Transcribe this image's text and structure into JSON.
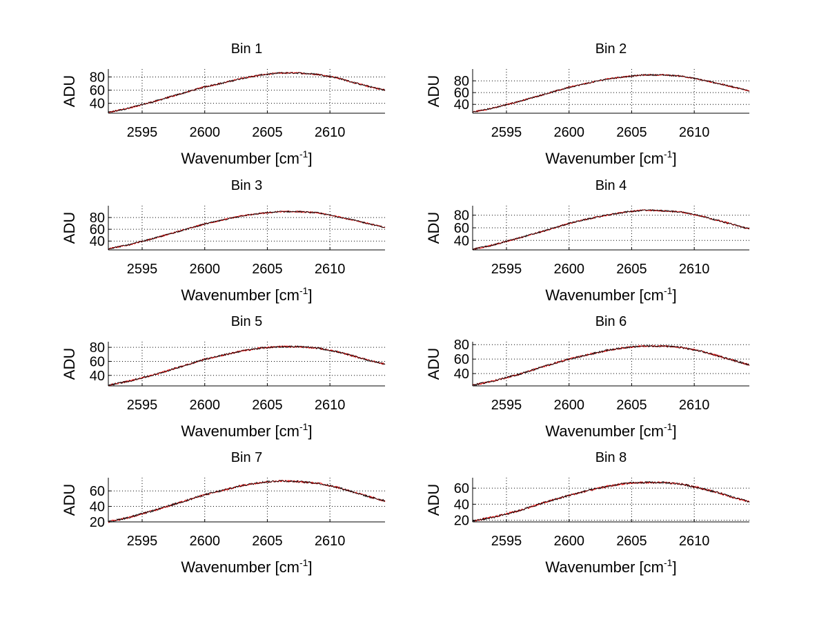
{
  "figure": {
    "background": "#ffffff",
    "line_colors": [
      "#ff0000",
      "#000000"
    ]
  },
  "chart_data": [
    {
      "type": "line",
      "title": "Bin 1",
      "xlabel": "Wavenumber [cm",
      "xlabel_sup": "-1",
      "xlabel_end": "]",
      "ylabel": "ADU",
      "xlim": [
        2592.3,
        2614.4
      ],
      "ylim": [
        25,
        92
      ],
      "xticks": [
        2595,
        2600,
        2605,
        2610
      ],
      "yticks": [
        40,
        60,
        80
      ],
      "grid": true,
      "series": [
        {
          "name": "red",
          "x": [
            2592.3,
            2594.0,
            2596.0,
            2598.0,
            2600.0,
            2601.5,
            2603.0,
            2604.5,
            2606.0,
            2607.5,
            2609.0,
            2610.5,
            2612.0,
            2613.0,
            2614.4
          ],
          "y": [
            26,
            33,
            43,
            54,
            65,
            71,
            78,
            83,
            86,
            86,
            84,
            79,
            71,
            66,
            60
          ]
        }
      ]
    },
    {
      "type": "line",
      "title": "Bin 2",
      "xlabel": "Wavenumber [cm",
      "xlabel_sup": "-1",
      "xlabel_end": "]",
      "ylabel": "ADU",
      "xlim": [
        2592.3,
        2614.4
      ],
      "ylim": [
        25,
        100
      ],
      "xticks": [
        2595,
        2600,
        2605,
        2610
      ],
      "yticks": [
        40,
        60,
        80
      ],
      "grid": true,
      "series": [
        {
          "name": "red",
          "x": [
            2592.3,
            2594.0,
            2596.0,
            2598.0,
            2600.0,
            2601.5,
            2603.0,
            2604.5,
            2606.0,
            2607.5,
            2609.0,
            2610.5,
            2612.0,
            2613.0,
            2614.4
          ],
          "y": [
            27,
            34,
            45,
            57,
            69,
            76,
            83,
            87,
            90,
            90,
            88,
            82,
            75,
            70,
            63
          ]
        }
      ]
    },
    {
      "type": "line",
      "title": "Bin 3",
      "xlabel": "Wavenumber [cm",
      "xlabel_sup": "-1",
      "xlabel_end": "]",
      "ylabel": "ADU",
      "xlim": [
        2592.3,
        2614.4
      ],
      "ylim": [
        25,
        100
      ],
      "xticks": [
        2595,
        2600,
        2605,
        2610
      ],
      "yticks": [
        40,
        60,
        80
      ],
      "grid": true,
      "series": [
        {
          "name": "red",
          "x": [
            2592.3,
            2594.0,
            2596.0,
            2598.0,
            2600.0,
            2601.5,
            2603.0,
            2604.5,
            2606.0,
            2607.5,
            2609.0,
            2610.5,
            2612.0,
            2613.0,
            2614.4
          ],
          "y": [
            27,
            34,
            45,
            57,
            69,
            76,
            83,
            87,
            90,
            90,
            88,
            82,
            75,
            70,
            63
          ]
        }
      ]
    },
    {
      "type": "line",
      "title": "Bin 4",
      "xlabel": "Wavenumber [cm",
      "xlabel_sup": "-1",
      "xlabel_end": "]",
      "ylabel": "ADU",
      "xlim": [
        2592.3,
        2614.4
      ],
      "ylim": [
        25,
        95
      ],
      "xticks": [
        2595,
        2600,
        2605,
        2610
      ],
      "yticks": [
        40,
        60,
        80
      ],
      "grid": true,
      "series": [
        {
          "name": "red",
          "x": [
            2592.3,
            2594.0,
            2596.0,
            2598.0,
            2600.0,
            2601.5,
            2603.0,
            2604.5,
            2606.0,
            2607.5,
            2609.0,
            2610.5,
            2612.0,
            2613.0,
            2614.4
          ],
          "y": [
            26,
            33,
            44,
            55,
            67,
            74,
            80,
            85,
            88,
            87,
            85,
            79,
            71,
            66,
            58
          ]
        }
      ]
    },
    {
      "type": "line",
      "title": "Bin 5",
      "xlabel": "Wavenumber [cm",
      "xlabel_sup": "-1",
      "xlabel_end": "]",
      "ylabel": "ADU",
      "xlim": [
        2592.3,
        2614.4
      ],
      "ylim": [
        25,
        88
      ],
      "xticks": [
        2595,
        2600,
        2605,
        2610
      ],
      "yticks": [
        40,
        60,
        80
      ],
      "grid": true,
      "series": [
        {
          "name": "red",
          "x": [
            2592.3,
            2594.0,
            2596.0,
            2598.0,
            2600.0,
            2601.5,
            2603.0,
            2604.5,
            2606.0,
            2607.5,
            2609.0,
            2610.5,
            2612.0,
            2613.0,
            2614.4
          ],
          "y": [
            26,
            32,
            41,
            52,
            63,
            69,
            75,
            79,
            81,
            81,
            79,
            74,
            67,
            62,
            56
          ]
        }
      ]
    },
    {
      "type": "line",
      "title": "Bin 6",
      "xlabel": "Wavenumber [cm",
      "xlabel_sup": "-1",
      "xlabel_end": "]",
      "ylabel": "ADU",
      "xlim": [
        2592.3,
        2614.4
      ],
      "ylim": [
        23,
        84
      ],
      "xticks": [
        2595,
        2600,
        2605,
        2610
      ],
      "yticks": [
        40,
        60,
        80
      ],
      "grid": true,
      "series": [
        {
          "name": "red",
          "x": [
            2592.3,
            2594.0,
            2596.0,
            2598.0,
            2600.0,
            2601.5,
            2603.0,
            2604.5,
            2606.0,
            2607.5,
            2609.0,
            2610.5,
            2612.0,
            2613.0,
            2614.4
          ],
          "y": [
            24,
            30,
            39,
            50,
            60,
            66,
            72,
            76,
            78,
            78,
            76,
            71,
            64,
            59,
            52
          ]
        }
      ]
    },
    {
      "type": "line",
      "title": "Bin 7",
      "xlabel": "Wavenumber [cm",
      "xlabel_sup": "-1",
      "xlabel_end": "]",
      "ylabel": "ADU",
      "xlim": [
        2592.3,
        2614.4
      ],
      "ylim": [
        20,
        77
      ],
      "xticks": [
        2595,
        2600,
        2605,
        2610
      ],
      "yticks": [
        20,
        40,
        60
      ],
      "grid": true,
      "series": [
        {
          "name": "red",
          "x": [
            2592.3,
            2594.0,
            2596.0,
            2598.0,
            2600.0,
            2601.5,
            2603.0,
            2604.5,
            2606.0,
            2607.5,
            2609.0,
            2610.5,
            2612.0,
            2613.0,
            2614.4
          ],
          "y": [
            20,
            26,
            35,
            45,
            55,
            61,
            67,
            71,
            73,
            72,
            70,
            65,
            58,
            53,
            47
          ]
        }
      ]
    },
    {
      "type": "line",
      "title": "Bin 8",
      "xlabel": "Wavenumber [cm",
      "xlabel_sup": "-1",
      "xlabel_end": "]",
      "ylabel": "ADU",
      "xlim": [
        2592.3,
        2614.4
      ],
      "ylim": [
        18,
        73
      ],
      "xticks": [
        2595,
        2600,
        2605,
        2610
      ],
      "yticks": [
        20,
        40,
        60
      ],
      "grid": true,
      "series": [
        {
          "name": "red",
          "x": [
            2592.3,
            2594.0,
            2596.0,
            2598.0,
            2600.0,
            2601.5,
            2603.0,
            2604.5,
            2606.0,
            2607.5,
            2609.0,
            2610.5,
            2612.0,
            2613.0,
            2614.4
          ],
          "y": [
            19,
            24,
            32,
            42,
            51,
            57,
            62,
            66,
            67,
            67,
            65,
            60,
            54,
            49,
            43
          ]
        }
      ]
    }
  ]
}
